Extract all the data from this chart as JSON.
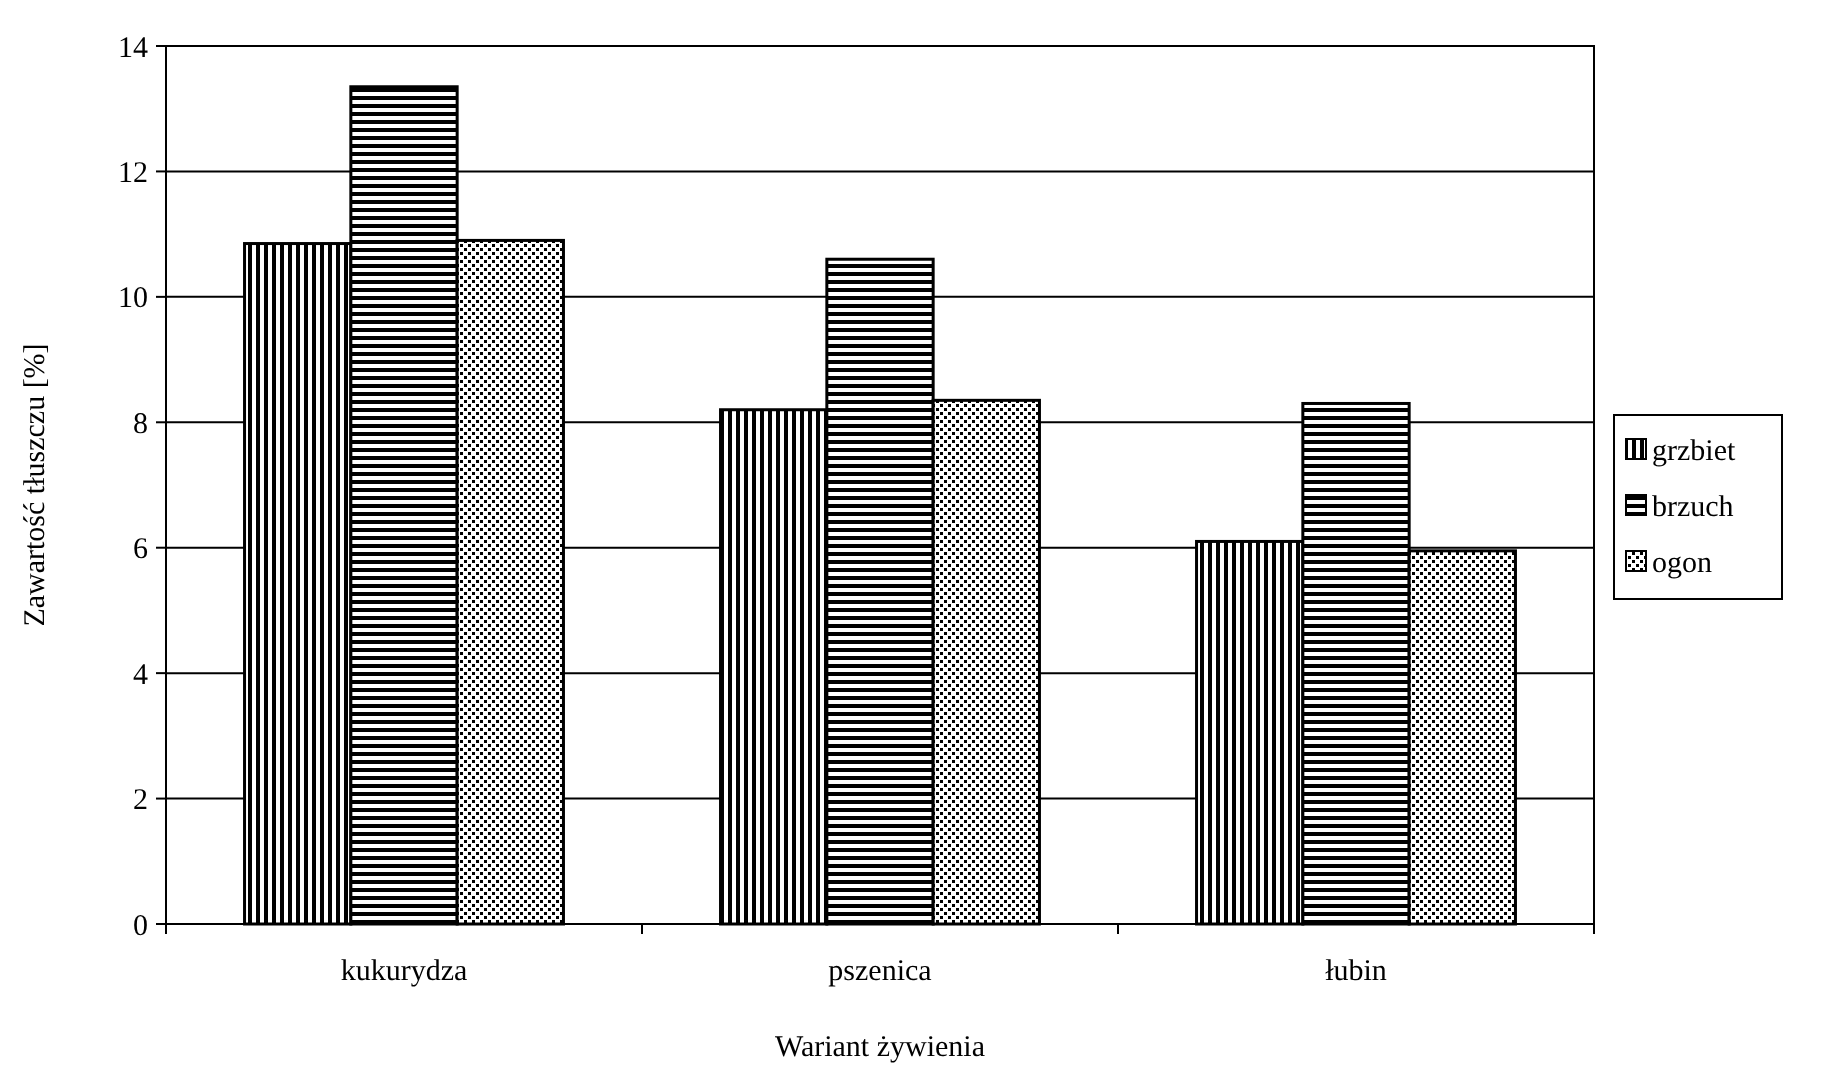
{
  "chart_data": {
    "type": "bar",
    "xlabel": "Wariant żywienia",
    "ylabel": "Zawartość tłuszczu [%]",
    "categories": [
      "kukurydza",
      "pszenica",
      "łubin"
    ],
    "series": [
      {
        "name": "grzbiet",
        "color": "#000000",
        "values": [
          10.85,
          8.2,
          6.1
        ]
      },
      {
        "name": "brzuch",
        "color": "#000000",
        "values": [
          13.35,
          10.6,
          8.3
        ]
      },
      {
        "name": "ogon",
        "color": "#000000",
        "values": [
          10.9,
          8.35,
          5.95
        ]
      }
    ],
    "ylim": [
      0,
      14
    ],
    "yticks": [
      0,
      2,
      4,
      6,
      8,
      10,
      12,
      14
    ],
    "grid": "y",
    "legend": "right"
  }
}
